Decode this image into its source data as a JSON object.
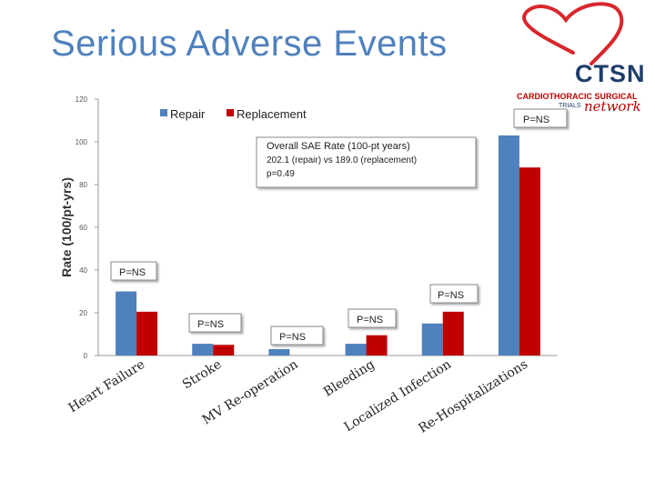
{
  "slide": {
    "title": "Serious Adverse Events"
  },
  "logo": {
    "main": "CTSN",
    "sub": "CARDIOTHORACIC SURGICAL",
    "trials": "TRIALS",
    "network": "network"
  },
  "colors": {
    "repair": "#4f81bd",
    "replacement": "#c00000",
    "title": "#4f81bd"
  },
  "chart_data": {
    "type": "bar",
    "ylabel": "Rate (100/pt-yrs)",
    "ylim": [
      0,
      120
    ],
    "yticks": [
      "0",
      "20",
      "40",
      "60",
      "80",
      "100",
      "120"
    ],
    "categories": [
      "Heart Failure",
      "Stroke",
      "MV Re-operation",
      "Bleeding",
      "Localized Infection",
      "Re-Hospitalizations"
    ],
    "series": [
      {
        "name": "Repair",
        "color": "#4f81bd",
        "values": [
          30,
          5.5,
          3,
          5.5,
          15,
          103
        ]
      },
      {
        "name": "Replacement",
        "color": "#c00000",
        "values": [
          20.5,
          5,
          0,
          9.5,
          20.5,
          88
        ]
      }
    ],
    "legend": "top",
    "grid": false,
    "summary_box": {
      "title": "Overall SAE Rate (100-pt years)",
      "line1": "202.1 (repair) vs 189.0 (replacement)",
      "line2": "p=0.49"
    },
    "annotations": [
      "P=NS",
      "P=NS",
      "P=NS",
      "P=NS",
      "P=NS",
      "P=NS"
    ]
  }
}
